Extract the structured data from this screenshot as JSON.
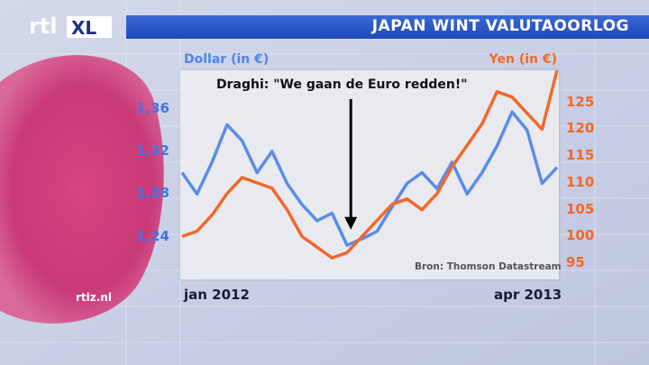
{
  "header": {
    "logo_text": "rtl XL",
    "title": "JAPAN WINT VALUTAOORLOG"
  },
  "watermark": "rtlz.nl",
  "chart_data": {
    "type": "line",
    "title": "JAPAN WINT VALUTAOORLOG",
    "annotation": "Draghi: \"We gaan de Euro redden!\"",
    "source": "Bron: Thomson Datastream",
    "x_start_label": "jan 2012",
    "x_end_label": "apr 2013",
    "left_axis": {
      "label": "Dollar (in €)",
      "ticks": [
        "1,36",
        "1,32",
        "1,28",
        "1,24"
      ],
      "tick_values": [
        1.36,
        1.32,
        1.28,
        1.24
      ],
      "range": [
        1.2,
        1.396
      ]
    },
    "right_axis": {
      "label": "Yen (in €)",
      "ticks": [
        "125",
        "120",
        "115",
        "110",
        "105",
        "100",
        "95"
      ],
      "tick_values": [
        125,
        120,
        115,
        110,
        105,
        100,
        95
      ],
      "range": [
        92,
        131
      ]
    },
    "x": [
      0,
      4,
      8,
      12,
      16,
      20,
      24,
      28,
      32,
      36,
      40,
      44,
      48,
      52,
      56,
      60,
      64,
      68,
      72,
      76,
      80,
      84,
      88,
      92,
      96,
      100
    ],
    "series": [
      {
        "name": "Dollar (in €)",
        "axis": "left",
        "color": "#5a8de8",
        "values": [
          1.3,
          1.28,
          1.31,
          1.345,
          1.33,
          1.3,
          1.32,
          1.29,
          1.27,
          1.255,
          1.262,
          1.232,
          1.238,
          1.245,
          1.268,
          1.29,
          1.3,
          1.285,
          1.31,
          1.28,
          1.3,
          1.325,
          1.357,
          1.34,
          1.29,
          1.305
        ]
      },
      {
        "name": "Yen (in €)",
        "axis": "right",
        "color": "#f2682a",
        "values": [
          100,
          101,
          104,
          108,
          111,
          110,
          109,
          105,
          100,
          98,
          96,
          97,
          100,
          103,
          106,
          107,
          105,
          108,
          113,
          117,
          121,
          127,
          126,
          123,
          120,
          131
        ]
      }
    ],
    "arrow_at_x": 45
  }
}
